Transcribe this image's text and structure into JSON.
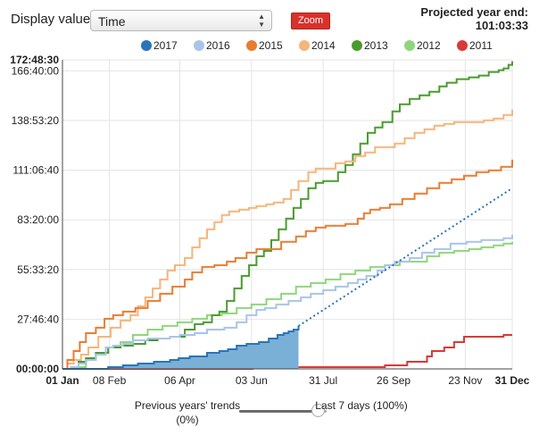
{
  "controls": {
    "display_label": "Display value:",
    "display_value": "Time",
    "zoom_label": "Zoom",
    "projected_title": "Projected year end:",
    "projected_value": "101:03:33"
  },
  "slider": {
    "left_label": "Previous years' trends (0%)",
    "right_label": "Last 7 days (100%)",
    "value": 1.0
  },
  "chart_data": {
    "type": "line",
    "title": "",
    "xlabel": "",
    "ylabel": "",
    "x_unit": "day of year",
    "y_unit": "hours (cumulative)",
    "xlim": [
      1,
      365
    ],
    "ylim": [
      0,
      172.81
    ],
    "x_ticks": [
      {
        "x": 1,
        "label": "01 Jan",
        "bold": true
      },
      {
        "x": 39,
        "label": "08 Feb",
        "bold": false
      },
      {
        "x": 96,
        "label": "06 Apr",
        "bold": false
      },
      {
        "x": 154,
        "label": "03 Jun",
        "bold": false
      },
      {
        "x": 212,
        "label": "31 Jul",
        "bold": false
      },
      {
        "x": 269,
        "label": "26 Sep",
        "bold": false
      },
      {
        "x": 327,
        "label": "23 Nov",
        "bold": false
      },
      {
        "x": 365,
        "label": "31 Dec",
        "bold": true
      }
    ],
    "y_ticks": [
      {
        "y": 0,
        "label": "00:00:00",
        "bold": true
      },
      {
        "y": 27.78,
        "label": "27:46:40",
        "bold": false
      },
      {
        "y": 55.56,
        "label": "55:33:20",
        "bold": false
      },
      {
        "y": 83.33,
        "label": "83:20:00",
        "bold": false
      },
      {
        "y": 111.11,
        "label": "111:06:40",
        "bold": false
      },
      {
        "y": 138.89,
        "label": "138:53:20",
        "bold": false
      },
      {
        "y": 166.67,
        "label": "166:40:00",
        "bold": false
      },
      {
        "y": 172.81,
        "label": "172:48:30",
        "bold": true
      }
    ],
    "grid": true,
    "legend_position": "top",
    "series": [
      {
        "name": "2017",
        "color": "#2a74b8",
        "fill": "#7aafd6",
        "filled": true,
        "step": true,
        "points": [
          [
            1,
            0
          ],
          [
            30,
            0
          ],
          [
            38,
            1
          ],
          [
            50,
            2
          ],
          [
            62,
            3
          ],
          [
            75,
            4
          ],
          [
            88,
            5
          ],
          [
            95,
            6
          ],
          [
            104,
            7
          ],
          [
            118,
            9
          ],
          [
            128,
            10
          ],
          [
            135,
            11
          ],
          [
            142,
            13
          ],
          [
            150,
            14
          ],
          [
            160,
            15
          ],
          [
            168,
            17
          ],
          [
            175,
            19
          ],
          [
            180,
            20
          ],
          [
            184,
            21
          ],
          [
            188,
            22
          ],
          [
            192,
            24
          ]
        ]
      },
      {
        "name": "projection",
        "color": "#2a74b8",
        "dashed": true,
        "points": [
          [
            192,
            24
          ],
          [
            365,
            101.06
          ]
        ]
      },
      {
        "name": "2016",
        "color": "#a9c4e8",
        "step": true,
        "points": [
          [
            1,
            0
          ],
          [
            8,
            1
          ],
          [
            14,
            3
          ],
          [
            20,
            5
          ],
          [
            28,
            8
          ],
          [
            36,
            12
          ],
          [
            42,
            13
          ],
          [
            50,
            14
          ],
          [
            58,
            16
          ],
          [
            70,
            17
          ],
          [
            78,
            17
          ],
          [
            88,
            18
          ],
          [
            96,
            19
          ],
          [
            108,
            20
          ],
          [
            118,
            22
          ],
          [
            132,
            23
          ],
          [
            142,
            26
          ],
          [
            150,
            30
          ],
          [
            158,
            33
          ],
          [
            165,
            34
          ],
          [
            174,
            36
          ],
          [
            184,
            38
          ],
          [
            194,
            40
          ],
          [
            202,
            42
          ],
          [
            212,
            44
          ],
          [
            222,
            46
          ],
          [
            232,
            48
          ],
          [
            240,
            50
          ],
          [
            247,
            52
          ],
          [
            256,
            55
          ],
          [
            262,
            58
          ],
          [
            270,
            60
          ],
          [
            282,
            62
          ],
          [
            292,
            65
          ],
          [
            302,
            67
          ],
          [
            315,
            70
          ],
          [
            328,
            71
          ],
          [
            340,
            72
          ],
          [
            350,
            72
          ],
          [
            358,
            73
          ],
          [
            365,
            75
          ]
        ]
      },
      {
        "name": "2015",
        "color": "#e77d33",
        "step": true,
        "points": [
          [
            1,
            0
          ],
          [
            5,
            5
          ],
          [
            10,
            10
          ],
          [
            15,
            15
          ],
          [
            20,
            20
          ],
          [
            28,
            23
          ],
          [
            35,
            28
          ],
          [
            42,
            30
          ],
          [
            50,
            32
          ],
          [
            60,
            34
          ],
          [
            70,
            38
          ],
          [
            80,
            42
          ],
          [
            90,
            46
          ],
          [
            100,
            50
          ],
          [
            106,
            54
          ],
          [
            114,
            57
          ],
          [
            124,
            58
          ],
          [
            134,
            60
          ],
          [
            141,
            62
          ],
          [
            150,
            65
          ],
          [
            158,
            67
          ],
          [
            168,
            67
          ],
          [
            178,
            71
          ],
          [
            190,
            74
          ],
          [
            198,
            77
          ],
          [
            206,
            79
          ],
          [
            214,
            80
          ],
          [
            222,
            80
          ],
          [
            230,
            81
          ],
          [
            240,
            84
          ],
          [
            245,
            87
          ],
          [
            250,
            89
          ],
          [
            258,
            90
          ],
          [
            266,
            92
          ],
          [
            276,
            95
          ],
          [
            286,
            98
          ],
          [
            296,
            101
          ],
          [
            306,
            104
          ],
          [
            316,
            106
          ],
          [
            326,
            108
          ],
          [
            336,
            110
          ],
          [
            346,
            111
          ],
          [
            356,
            113
          ],
          [
            365,
            117
          ]
        ]
      },
      {
        "name": "2014",
        "color": "#f5b57b",
        "step": true,
        "points": [
          [
            1,
            0
          ],
          [
            5,
            3
          ],
          [
            10,
            5
          ],
          [
            16,
            8
          ],
          [
            22,
            12
          ],
          [
            30,
            18
          ],
          [
            40,
            23
          ],
          [
            48,
            27
          ],
          [
            56,
            30
          ],
          [
            62,
            35
          ],
          [
            68,
            40
          ],
          [
            74,
            45
          ],
          [
            80,
            50
          ],
          [
            86,
            55
          ],
          [
            92,
            58
          ],
          [
            100,
            62
          ],
          [
            106,
            68
          ],
          [
            112,
            73
          ],
          [
            118,
            78
          ],
          [
            124,
            82
          ],
          [
            130,
            86
          ],
          [
            136,
            88
          ],
          [
            144,
            89
          ],
          [
            152,
            90
          ],
          [
            158,
            91
          ],
          [
            166,
            92
          ],
          [
            172,
            93
          ],
          [
            180,
            95
          ],
          [
            186,
            100
          ],
          [
            192,
            105
          ],
          [
            200,
            110
          ],
          [
            206,
            112
          ],
          [
            214,
            112
          ],
          [
            222,
            115
          ],
          [
            230,
            116
          ],
          [
            238,
            119
          ],
          [
            246,
            121
          ],
          [
            254,
            124
          ],
          [
            262,
            124
          ],
          [
            270,
            126
          ],
          [
            278,
            129
          ],
          [
            286,
            132
          ],
          [
            294,
            134
          ],
          [
            302,
            136
          ],
          [
            310,
            137
          ],
          [
            318,
            138
          ],
          [
            326,
            138
          ],
          [
            334,
            138
          ],
          [
            342,
            139
          ],
          [
            350,
            140
          ],
          [
            358,
            142
          ],
          [
            365,
            145
          ]
        ]
      },
      {
        "name": "2013",
        "color": "#4a9b2f",
        "step": true,
        "points": [
          [
            1,
            0
          ],
          [
            8,
            1
          ],
          [
            14,
            4
          ],
          [
            20,
            6
          ],
          [
            28,
            9
          ],
          [
            38,
            12
          ],
          [
            48,
            13
          ],
          [
            58,
            14
          ],
          [
            68,
            16
          ],
          [
            78,
            17
          ],
          [
            88,
            18
          ],
          [
            100,
            22
          ],
          [
            108,
            25
          ],
          [
            115,
            26
          ],
          [
            122,
            30
          ],
          [
            128,
            32
          ],
          [
            134,
            38
          ],
          [
            140,
            45
          ],
          [
            146,
            52
          ],
          [
            152,
            58
          ],
          [
            158,
            63
          ],
          [
            164,
            66
          ],
          [
            170,
            72
          ],
          [
            176,
            78
          ],
          [
            182,
            84
          ],
          [
            188,
            90
          ],
          [
            194,
            95
          ],
          [
            200,
            101
          ],
          [
            206,
            104
          ],
          [
            212,
            105
          ],
          [
            218,
            105
          ],
          [
            224,
            110
          ],
          [
            230,
            114
          ],
          [
            236,
            120
          ],
          [
            242,
            126
          ],
          [
            248,
            132
          ],
          [
            254,
            135
          ],
          [
            260,
            138
          ],
          [
            268,
            144
          ],
          [
            274,
            148
          ],
          [
            282,
            151
          ],
          [
            290,
            153
          ],
          [
            298,
            155
          ],
          [
            306,
            158
          ],
          [
            312,
            160
          ],
          [
            320,
            162
          ],
          [
            330,
            163
          ],
          [
            338,
            164
          ],
          [
            346,
            166
          ],
          [
            354,
            167
          ],
          [
            358,
            168
          ],
          [
            362,
            170
          ],
          [
            365,
            172
          ]
        ]
      },
      {
        "name": "2012",
        "color": "#8fd67c",
        "step": true,
        "points": [
          [
            1,
            0
          ],
          [
            10,
            1
          ],
          [
            20,
            5
          ],
          [
            28,
            9
          ],
          [
            38,
            12
          ],
          [
            48,
            15
          ],
          [
            58,
            19
          ],
          [
            70,
            22
          ],
          [
            82,
            24
          ],
          [
            94,
            26
          ],
          [
            106,
            28
          ],
          [
            118,
            30
          ],
          [
            130,
            31
          ],
          [
            142,
            34
          ],
          [
            154,
            36
          ],
          [
            166,
            39
          ],
          [
            178,
            42
          ],
          [
            190,
            46
          ],
          [
            202,
            48
          ],
          [
            214,
            50
          ],
          [
            226,
            53
          ],
          [
            238,
            55
          ],
          [
            250,
            57
          ],
          [
            262,
            58
          ],
          [
            274,
            60
          ],
          [
            286,
            60
          ],
          [
            296,
            63
          ],
          [
            306,
            65
          ],
          [
            318,
            66
          ],
          [
            330,
            67
          ],
          [
            340,
            68
          ],
          [
            350,
            69
          ],
          [
            358,
            70
          ],
          [
            365,
            71
          ]
        ]
      },
      {
        "name": "2011",
        "color": "#d93a37",
        "step": true,
        "points": [
          [
            1,
            0
          ],
          [
            150,
            0
          ],
          [
            155,
            1
          ],
          [
            255,
            1
          ],
          [
            262,
            2
          ],
          [
            275,
            2
          ],
          [
            280,
            4
          ],
          [
            290,
            4
          ],
          [
            296,
            7
          ],
          [
            300,
            10
          ],
          [
            310,
            12
          ],
          [
            318,
            15
          ],
          [
            326,
            18
          ],
          [
            350,
            18
          ],
          [
            358,
            19
          ],
          [
            365,
            19
          ]
        ]
      }
    ]
  }
}
